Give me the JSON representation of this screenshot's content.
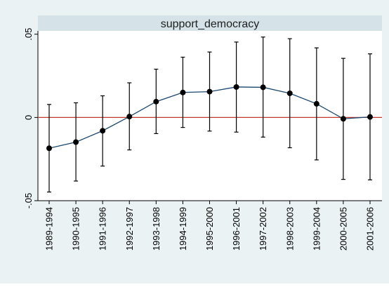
{
  "chart_data": {
    "type": "line",
    "title": "support_democracy",
    "xlabel": "",
    "ylabel": "",
    "categories": [
      "1989-1994",
      "1990-1995",
      "1991-1996",
      "1992-1997",
      "1993-1998",
      "1994-1999",
      "1995-2000",
      "1996-2001",
      "1997-2002",
      "1998-2003",
      "1999-2004",
      "2000-2005",
      "2001-2006"
    ],
    "point_estimate": [
      -0.0185,
      -0.0148,
      -0.008,
      0.0005,
      0.0095,
      0.015,
      0.0155,
      0.0183,
      0.0181,
      0.0145,
      0.0082,
      -0.0008,
      0.0003
    ],
    "ci_lower": [
      -0.0448,
      -0.0382,
      -0.0292,
      -0.0195,
      -0.0097,
      -0.006,
      -0.0082,
      -0.0088,
      -0.0118,
      -0.0182,
      -0.0255,
      -0.0372,
      -0.0375
    ],
    "ci_upper": [
      0.0078,
      0.0088,
      0.013,
      0.0208,
      0.029,
      0.0362,
      0.0393,
      0.0453,
      0.0483,
      0.0473,
      0.0418,
      0.0355,
      0.0382
    ],
    "ylim": [
      -0.05,
      0.052
    ],
    "yticks": [
      -0.05,
      0,
      0.05
    ],
    "ytick_labels": [
      "-.05",
      "0",
      ".05"
    ],
    "reference_line": {
      "y": 0,
      "color": "#c0392b"
    },
    "grid": false,
    "colors": {
      "outer_background": "#eaf2f3",
      "plot_background": "#ffffff",
      "title_band": "#d5e3e8",
      "line": "#1a476f",
      "markers": "#000000",
      "error_bars": "#000000"
    }
  }
}
